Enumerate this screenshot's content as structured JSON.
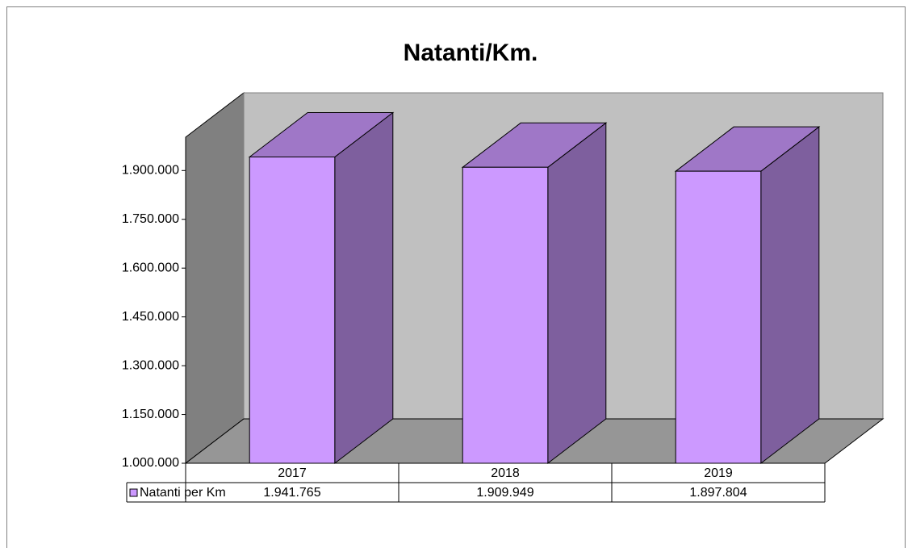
{
  "chart_data": {
    "type": "bar",
    "title": "Natanti/Km.",
    "categories": [
      "2017",
      "2018",
      "2019"
    ],
    "series": [
      {
        "name": "Natanti per Km",
        "color": "#cc99ff",
        "values": [
          1941765,
          1909949,
          1897804
        ],
        "value_labels": [
          "1.941.765",
          "1.909.949",
          "1.897.804"
        ]
      }
    ],
    "ylim": [
      1000000,
      2000000
    ],
    "yticks": [
      {
        "value": 1000000,
        "label": "1.000.000"
      },
      {
        "value": 1150000,
        "label": "1.150.000"
      },
      {
        "value": 1300000,
        "label": "1.300.000"
      },
      {
        "value": 1450000,
        "label": "1.450.000"
      },
      {
        "value": 1600000,
        "label": "1.600.000"
      },
      {
        "value": 1750000,
        "label": "1.750.000"
      },
      {
        "value": 1900000,
        "label": "1.900.000"
      }
    ],
    "grid": false
  }
}
